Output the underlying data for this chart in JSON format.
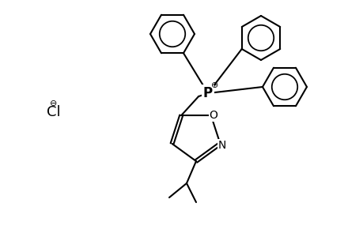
{
  "background_color": "#ffffff",
  "line_color": "#000000",
  "line_width": 1.5,
  "font_size": 11,
  "fig_width": 4.6,
  "fig_height": 3.0,
  "dpi": 100,
  "cl_label": "Cl",
  "cl_charge": "⊖",
  "p_label": "P",
  "p_charge": "⊕",
  "n_label": "N",
  "o_label": "O"
}
